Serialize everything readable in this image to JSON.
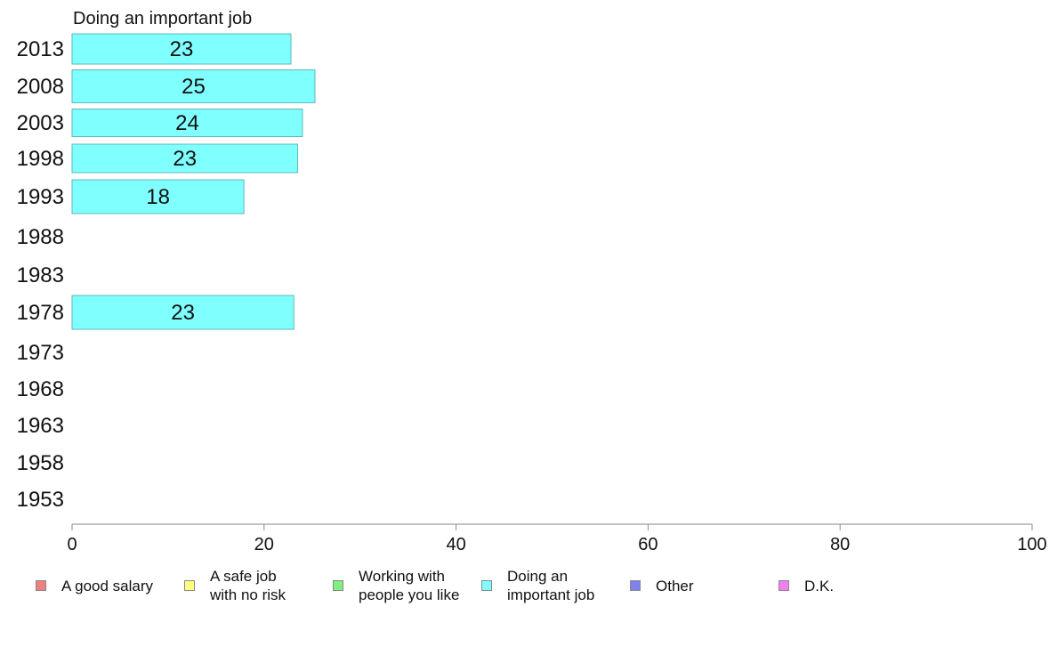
{
  "chart_data": {
    "type": "bar",
    "orientation": "horizontal",
    "title": "Doing an important job",
    "categories": [
      "2013",
      "2008",
      "2003",
      "1998",
      "1993",
      "1988",
      "1983",
      "1978",
      "1973",
      "1968",
      "1963",
      "1958",
      "1953"
    ],
    "values": [
      23,
      25,
      24,
      23,
      18,
      null,
      null,
      23,
      null,
      null,
      null,
      null,
      null
    ],
    "bar_lengths": [
      22.8,
      25.3,
      24.0,
      23.5,
      17.9,
      null,
      null,
      23.1,
      null,
      null,
      null,
      null,
      null
    ],
    "xlim": [
      0,
      100
    ],
    "xticks": [
      0,
      20,
      40,
      60,
      80,
      100
    ],
    "bar_color": "#80ffff",
    "bar_edge_color": "#5fb8b8",
    "grid": false,
    "legend_position": "bottom",
    "legend": [
      {
        "label": "A good salary",
        "color": "#f08080"
      },
      {
        "label": "A safe job\nwith no risk",
        "color": "#ffff80"
      },
      {
        "label": "Working with\npeople you like",
        "color": "#80f080"
      },
      {
        "label": "Doing an\nimportant job",
        "color": "#80ffff"
      },
      {
        "label": "Other",
        "color": "#8080f0"
      },
      {
        "label": "D.K.",
        "color": "#f080f0"
      }
    ]
  }
}
